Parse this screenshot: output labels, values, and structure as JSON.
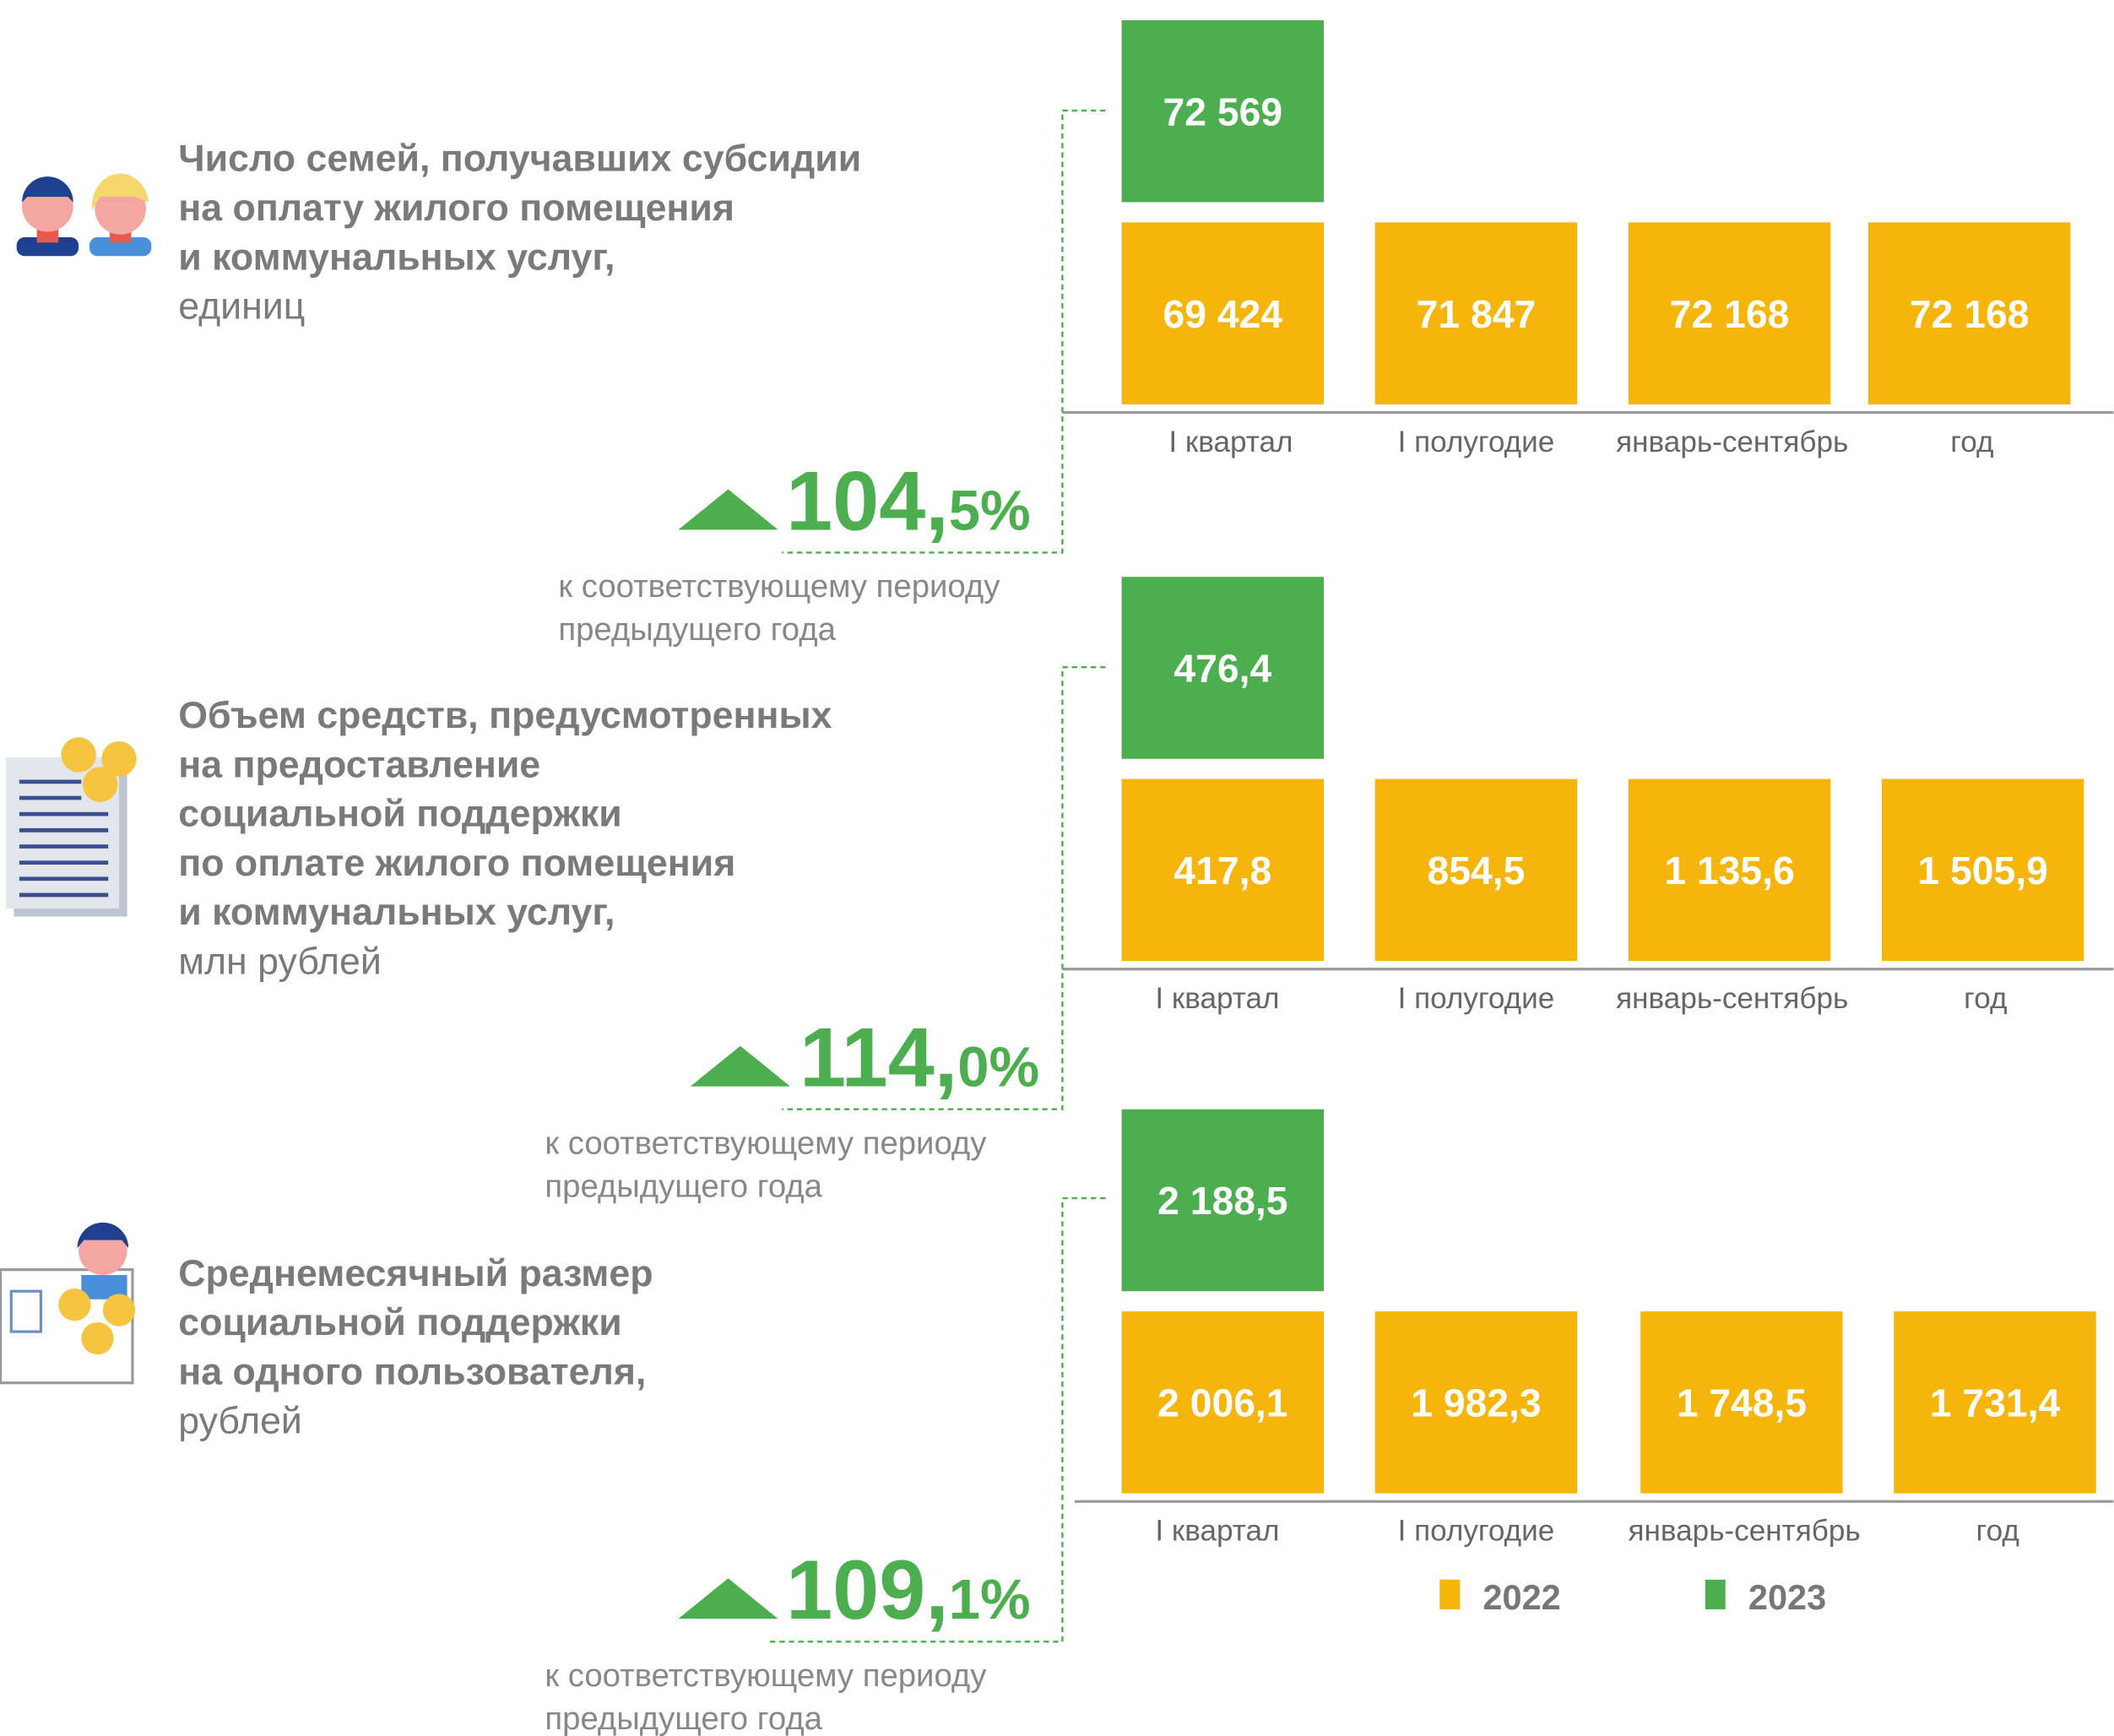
{
  "panels": [
    {
      "title_lines": [
        "Число семей, получавших субсидии",
        "на оплату жилого помещения",
        "и коммунальных услуг,"
      ],
      "unit": "единиц",
      "value_2023": "72 569",
      "values_2022": [
        "69 424",
        "71 847",
        "72 168",
        "72 168"
      ],
      "categories": [
        "I квартал",
        "I полугодие",
        "январь-сентябрь",
        "год"
      ],
      "percent_main": "104,",
      "percent_decimal": "5%",
      "note_lines": [
        "к соответствующему периоду",
        "предыдущего года"
      ]
    },
    {
      "title_lines": [
        "Объем средств, предусмотренных",
        "на предоставление",
        "социальной поддержки",
        "по оплате жилого помещения",
        "и коммунальных услуг,"
      ],
      "unit": "млн рублей",
      "value_2023": "476,4",
      "values_2022": [
        "417,8",
        "854,5",
        "1 135,6",
        "1 505,9"
      ],
      "categories": [
        "I квартал",
        "I полугодие",
        "январь-сентябрь",
        "год"
      ],
      "percent_main": "114,",
      "percent_decimal": "0%",
      "note_lines": [
        "к соответствующему периоду",
        "предыдущего года"
      ]
    },
    {
      "title_lines": [
        "Среднемесячный размер",
        "социальной поддержки",
        "на одного пользователя,"
      ],
      "unit": "рублей",
      "value_2023": "2 188,5",
      "values_2022": [
        "2 006,1",
        "1 982,3",
        "1 748,5",
        "1 731,4"
      ],
      "categories": [
        "I квартал",
        "I полугодие",
        "январь-сентябрь",
        "год"
      ],
      "percent_main": "109,",
      "percent_decimal": "1%",
      "note_lines": [
        "к соответствующему периоду",
        "предыдущего года"
      ]
    }
  ],
  "legend": [
    {
      "name": "2022",
      "color": "#f5b50a"
    },
    {
      "name": "2023",
      "color": "#4cae4f"
    }
  ]
}
